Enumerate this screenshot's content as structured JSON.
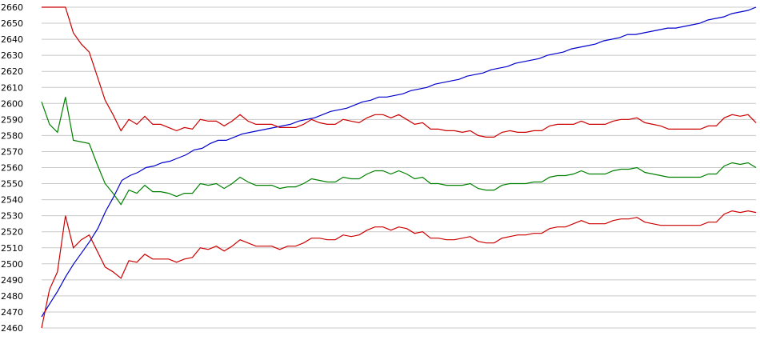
{
  "chart_data": {
    "type": "line",
    "title": "",
    "xlabel": "",
    "ylabel": "",
    "ylim": [
      2460,
      2660
    ],
    "y_ticks": [
      "2460",
      "2470",
      "2480",
      "2490",
      "2500",
      "2510",
      "2520",
      "2530",
      "2540",
      "2550",
      "2560",
      "2570",
      "2580",
      "2590",
      "2600",
      "2610",
      "2620",
      "2630",
      "2640",
      "2650",
      "2660"
    ],
    "grid": true,
    "legend": "none",
    "series": [
      {
        "color": "#0000cc",
        "values": [
          2467,
          2475,
          2483,
          2492,
          2500,
          2507,
          2514,
          2522,
          2533,
          2542,
          2552,
          2555,
          2557,
          2560,
          2561,
          2563,
          2564,
          2566,
          2568,
          2571,
          2572,
          2575,
          2577,
          2577,
          2579,
          2581,
          2582,
          2583,
          2584,
          2585,
          2586,
          2587,
          2589,
          2590,
          2591,
          2593,
          2595,
          2596,
          2597,
          2599,
          2601,
          2602,
          2604,
          2604,
          2605,
          2606,
          2608,
          2609,
          2610,
          2612,
          2613,
          2614,
          2615,
          2617,
          2618,
          2619,
          2621,
          2622,
          2623,
          2625,
          2626,
          2627,
          2628,
          2630,
          2631,
          2632,
          2634,
          2635,
          2636,
          2637,
          2639,
          2640,
          2641,
          2643,
          2643,
          2644,
          2645,
          2646,
          2647,
          2647,
          2648,
          2649,
          2650,
          2652,
          2653,
          2654,
          2656,
          2657,
          2658,
          2660
        ]
      },
      {
        "color": "#cc0000",
        "values": [
          2660,
          2660,
          2660,
          2660,
          2644,
          2637,
          2632,
          2617,
          2602,
          2593,
          2583,
          2590,
          2587,
          2592,
          2587,
          2587,
          2585,
          2583,
          2585,
          2584,
          2590,
          2589,
          2589,
          2586,
          2589,
          2593,
          2589,
          2587,
          2587,
          2587,
          2585,
          2585,
          2585,
          2587,
          2590,
          2588,
          2587,
          2587,
          2590,
          2589,
          2588,
          2591,
          2593,
          2593,
          2591,
          2593,
          2590,
          2587,
          2588,
          2584,
          2584,
          2583,
          2583,
          2582,
          2583,
          2580,
          2579,
          2579,
          2582,
          2583,
          2582,
          2582,
          2583,
          2583,
          2586,
          2587,
          2587,
          2587,
          2589,
          2587,
          2587,
          2587,
          2589,
          2590,
          2590,
          2591,
          2588,
          2587,
          2586,
          2584,
          2584,
          2584,
          2584,
          2584,
          2586,
          2586,
          2591,
          2593,
          2592,
          2593,
          2588
        ]
      },
      {
        "color": "#008000",
        "values": [
          2601,
          2587,
          2582,
          2604,
          2577,
          2576,
          2575,
          2562,
          2550,
          2544,
          2537,
          2546,
          2544,
          2549,
          2545,
          2545,
          2544,
          2542,
          2544,
          2544,
          2550,
          2549,
          2550,
          2547,
          2550,
          2554,
          2551,
          2549,
          2549,
          2549,
          2547,
          2548,
          2548,
          2550,
          2553,
          2552,
          2551,
          2551,
          2554,
          2553,
          2553,
          2556,
          2558,
          2558,
          2556,
          2558,
          2556,
          2553,
          2554,
          2550,
          2550,
          2549,
          2549,
          2549,
          2550,
          2547,
          2546,
          2546,
          2549,
          2550,
          2550,
          2550,
          2551,
          2551,
          2554,
          2555,
          2555,
          2556,
          2558,
          2556,
          2556,
          2556,
          2558,
          2559,
          2559,
          2560,
          2557,
          2556,
          2555,
          2554,
          2554,
          2554,
          2554,
          2554,
          2556,
          2556,
          2561,
          2563,
          2562,
          2563,
          2560
        ]
      },
      {
        "color": "#cc0000",
        "values": [
          2460,
          2484,
          2495,
          2530,
          2510,
          2515,
          2518,
          2508,
          2498,
          2495,
          2491,
          2502,
          2501,
          2506,
          2503,
          2503,
          2503,
          2501,
          2503,
          2504,
          2510,
          2509,
          2511,
          2508,
          2511,
          2515,
          2513,
          2511,
          2511,
          2511,
          2509,
          2511,
          2511,
          2513,
          2516,
          2516,
          2515,
          2515,
          2518,
          2517,
          2518,
          2521,
          2523,
          2523,
          2521,
          2523,
          2522,
          2519,
          2520,
          2516,
          2516,
          2515,
          2515,
          2516,
          2517,
          2514,
          2513,
          2513,
          2516,
          2517,
          2518,
          2518,
          2519,
          2519,
          2522,
          2523,
          2523,
          2525,
          2527,
          2525,
          2525,
          2525,
          2527,
          2528,
          2528,
          2529,
          2526,
          2525,
          2524,
          2524,
          2524,
          2524,
          2524,
          2524,
          2526,
          2526,
          2531,
          2533,
          2532,
          2533,
          2532
        ]
      }
    ]
  }
}
